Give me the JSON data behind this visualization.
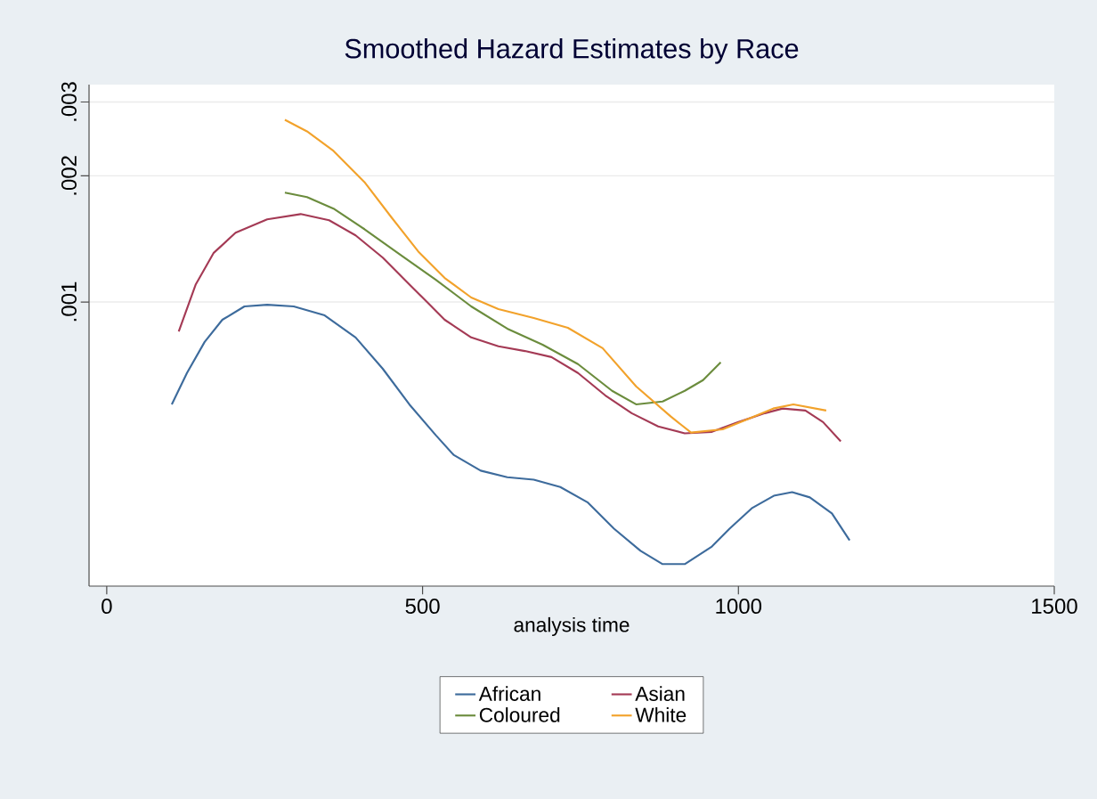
{
  "chart_data": {
    "type": "line",
    "title": "Smoothed Hazard Estimates by Race",
    "xlabel": "analysis time",
    "log": "y",
    "grid": "y",
    "legend": "bottom",
    "marker": "none",
    "line_style": "solid",
    "xlim": [
      -28,
      1500
    ],
    "xticks": [
      0,
      500,
      1000,
      1500
    ],
    "ylim": [
      0.00021,
      0.0033
    ],
    "yticks": [
      {
        "value": 0.001,
        "label": ".001"
      },
      {
        "value": 0.002,
        "label": ".002"
      },
      {
        "value": 0.003,
        "label": ".003"
      }
    ],
    "series": [
      {
        "name": "African",
        "color": "#3d6b9c",
        "x": [
          103,
          127,
          155,
          183,
          218,
          254,
          296,
          345,
          394,
          437,
          479,
          521,
          549,
          592,
          634,
          676,
          718,
          761,
          803,
          845,
          880,
          915,
          958,
          986,
          1021,
          1056,
          1085,
          1113,
          1148,
          1176
        ],
        "values": [
          0.00057,
          0.000677,
          0.000803,
          0.000907,
          0.000976,
          0.000985,
          0.000976,
          0.000929,
          0.000823,
          0.000693,
          0.00057,
          0.000481,
          0.000432,
          0.000396,
          0.000382,
          0.000377,
          0.000362,
          0.000333,
          0.000288,
          0.000255,
          0.000237,
          0.000237,
          0.000261,
          0.000288,
          0.000322,
          0.000345,
          0.000352,
          0.000342,
          0.000313,
          0.00027
        ]
      },
      {
        "name": "Asian",
        "color": "#a43a55",
        "x": [
          114,
          141,
          169,
          204,
          254,
          307,
          352,
          394,
          437,
          479,
          507,
          535,
          577,
          620,
          662,
          704,
          746,
          789,
          831,
          873,
          915,
          958,
          1000,
          1042,
          1070,
          1106,
          1134,
          1162
        ],
        "values": [
          0.000851,
          0.001102,
          0.001308,
          0.001463,
          0.001575,
          0.001621,
          0.001567,
          0.001442,
          0.001276,
          0.001102,
          0.001,
          0.000907,
          0.000823,
          0.000784,
          0.000764,
          0.000739,
          0.000677,
          0.000599,
          0.000543,
          0.000505,
          0.000486,
          0.00049,
          0.000517,
          0.000543,
          0.000557,
          0.000551,
          0.000517,
          0.000465
        ]
      },
      {
        "name": "Coloured",
        "color": "#6b8c3d",
        "x": [
          282,
          317,
          359,
          408,
          465,
          521,
          577,
          634,
          690,
          746,
          800,
          838,
          880,
          915,
          944,
          972
        ],
        "values": [
          0.001823,
          0.001779,
          0.00167,
          0.001492,
          0.001295,
          0.00113,
          0.000976,
          0.000864,
          0.000791,
          0.000711,
          0.000614,
          0.00057,
          0.000579,
          0.000614,
          0.000651,
          0.000718
        ]
      },
      {
        "name": "White",
        "color": "#f2a22b",
        "x": [
          282,
          317,
          359,
          408,
          451,
          493,
          535,
          577,
          620,
          676,
          730,
          785,
          838,
          893,
          925,
          975,
          1014,
          1055,
          1087,
          1139
        ],
        "values": [
          0.00272,
          0.002553,
          0.002293,
          0.001932,
          0.00159,
          0.001321,
          0.001141,
          0.001025,
          0.000962,
          0.000916,
          0.000868,
          0.000776,
          0.000629,
          0.000533,
          0.000488,
          0.000497,
          0.000525,
          0.000557,
          0.00057,
          0.000551
        ]
      }
    ]
  }
}
